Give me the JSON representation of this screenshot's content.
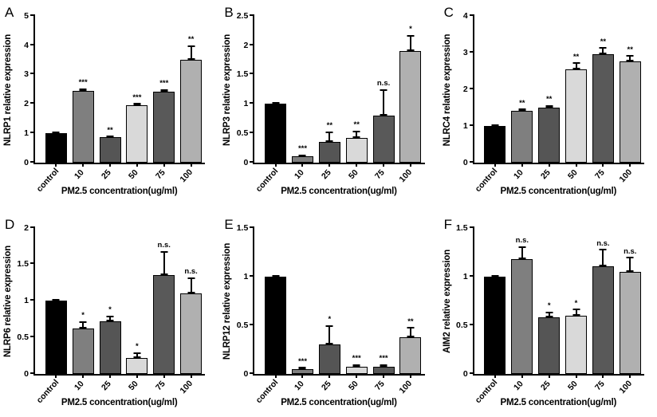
{
  "global": {
    "xlabel": "PM2.5 concentration(ug/ml)",
    "categories": [
      "control",
      "10",
      "25",
      "50",
      "75",
      "100"
    ],
    "bar_colors": [
      "#000000",
      "#7f7f7f",
      "#555555",
      "#d9d9d9",
      "#595959",
      "#b0b0b0"
    ],
    "background_color": "#ffffff",
    "axis_color": "#000000",
    "font_family": "Arial",
    "label_fontweight": "bold",
    "label_fontsize": 11.5,
    "tick_fontsize": 10.5,
    "sig_fontsize": 9.5,
    "xtick_rotation_deg": -48,
    "bar_border_color": "#000000",
    "bar_gap_pct": 3.5
  },
  "panels": [
    {
      "letter": "A",
      "ylabel": "NLRP1 relative expression",
      "ylim": [
        0,
        5
      ],
      "ytick_step": 1,
      "values": [
        1.0,
        2.45,
        0.85,
        1.95,
        2.4,
        3.5
      ],
      "errors": [
        0.01,
        0.08,
        0.04,
        0.07,
        0.1,
        0.5
      ],
      "sig": [
        "",
        "***",
        "**",
        "***",
        "***",
        "**"
      ]
    },
    {
      "letter": "B",
      "ylabel": "NLRP3 relative expression",
      "ylim": [
        0,
        2.5
      ],
      "ytick_step": 0.5,
      "values": [
        1.0,
        0.1,
        0.35,
        0.42,
        0.8,
        1.9
      ],
      "errors": [
        0.01,
        0.03,
        0.18,
        0.12,
        0.45,
        0.28
      ],
      "sig": [
        "",
        "***",
        "**",
        "**",
        "n.s.",
        "*"
      ]
    },
    {
      "letter": "C",
      "ylabel": "NLRC4 relative expression",
      "ylim": [
        0,
        4
      ],
      "ytick_step": 1,
      "values": [
        1.0,
        1.4,
        1.5,
        2.55,
        2.95,
        2.75
      ],
      "errors": [
        0.01,
        0.07,
        0.06,
        0.18,
        0.2,
        0.18
      ],
      "sig": [
        "",
        "**",
        "**",
        "**",
        "**",
        "**"
      ]
    },
    {
      "letter": "D",
      "ylabel": "NLRP6 relative expression",
      "ylim": [
        0,
        2.0
      ],
      "ytick_step": 0.5,
      "values": [
        1.0,
        0.62,
        0.72,
        0.22,
        1.35,
        1.1
      ],
      "errors": [
        0.01,
        0.1,
        0.08,
        0.08,
        0.33,
        0.22
      ],
      "sig": [
        "",
        "*",
        "*",
        "*",
        "n.s.",
        "n.s."
      ]
    },
    {
      "letter": "E",
      "ylabel": "NLRP12 relative expression",
      "ylim": [
        0,
        1.5
      ],
      "ytick_step": 0.5,
      "values": [
        1.0,
        0.05,
        0.3,
        0.07,
        0.07,
        0.38
      ],
      "errors": [
        0.01,
        0.02,
        0.2,
        0.03,
        0.03,
        0.1
      ],
      "sig": [
        "",
        "***",
        "*",
        "***",
        "***",
        "**"
      ]
    },
    {
      "letter": "F",
      "ylabel": "AIM2 relative expression",
      "ylim": [
        0,
        1.5
      ],
      "ytick_step": 0.5,
      "values": [
        1.0,
        1.18,
        0.58,
        0.6,
        1.1,
        1.05
      ],
      "errors": [
        0.01,
        0.13,
        0.06,
        0.07,
        0.18,
        0.15
      ],
      "sig": [
        "",
        "n.s.",
        "*",
        "*",
        "n.s.",
        "n.s."
      ]
    }
  ]
}
